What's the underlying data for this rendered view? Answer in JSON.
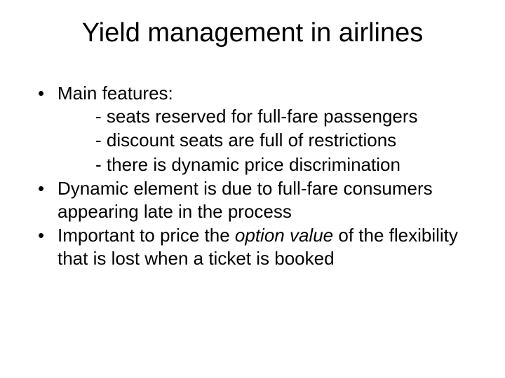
{
  "title": "Yield management in airlines",
  "bullets": {
    "b1": {
      "label": "Main features:",
      "sub": {
        "s1": "- seats reserved for full-fare passengers",
        "s2": "- discount seats are full of restrictions",
        "s3": "- there is dynamic price discrimination"
      }
    },
    "b2": "Dynamic element is due to full-fare consumers appearing late in the process",
    "b3_pre": "Important to price the ",
    "b3_em": "option value",
    "b3_post": " of the flexibility that is lost when a ticket is booked"
  },
  "colors": {
    "bg": "#ffffff",
    "text": "#000000"
  },
  "font": {
    "family": "Arial",
    "title_size_pt": 38,
    "body_size_pt": 26
  }
}
